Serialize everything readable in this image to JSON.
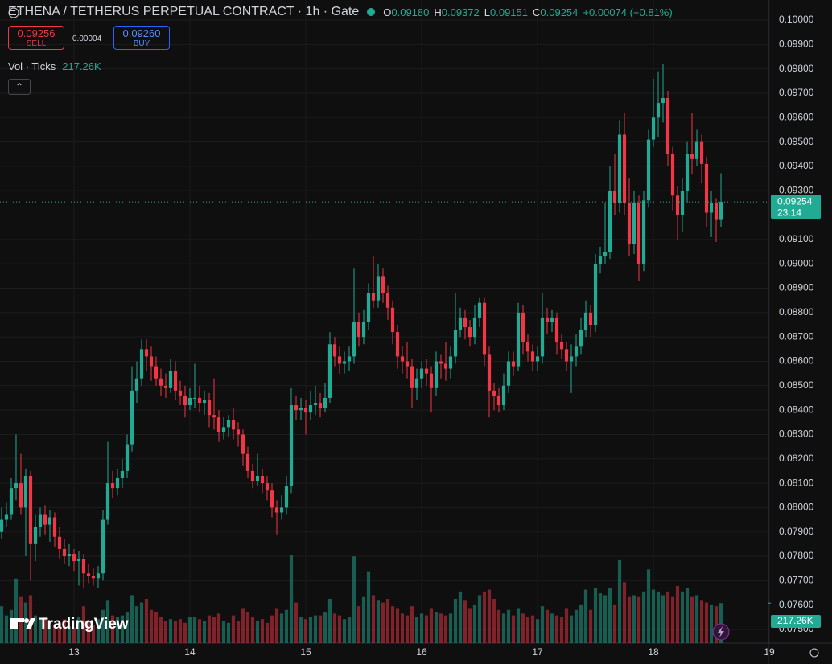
{
  "chart_data": {
    "type": "candlestick",
    "title": "ETHENA / TETHERUS PERPETUAL CONTRACT · 1h · Gate",
    "legend_ohlc": [
      {
        "key": "O",
        "value": "0.09180"
      },
      {
        "key": "H",
        "value": "0.09372"
      },
      {
        "key": "L",
        "value": "0.09151"
      },
      {
        "key": "C",
        "value": "0.09254"
      }
    ],
    "change": "+0.00074 (+0.81%)",
    "sell": {
      "price": "0.09256",
      "label": "SELL"
    },
    "spread": "0.00004",
    "buy": {
      "price": "0.09260",
      "label": "BUY"
    },
    "volume_title": "Vol · Ticks",
    "volume_label": "217.26K",
    "last_price_label": "0.09254",
    "countdown": "23:14",
    "logo": "TradingView",
    "up_color": "#22ab94",
    "down_color": "#f23645",
    "grid": true,
    "candles": [
      [
        0.079,
        0.08,
        0.0787,
        0.0795
      ],
      [
        0.0795,
        0.0802,
        0.0792,
        0.0797
      ],
      [
        0.0797,
        0.0812,
        0.0795,
        0.0808
      ],
      [
        0.0808,
        0.083,
        0.0803,
        0.081
      ],
      [
        0.081,
        0.0822,
        0.0797,
        0.08
      ],
      [
        0.08,
        0.0816,
        0.078,
        0.0813
      ],
      [
        0.0813,
        0.0815,
        0.077,
        0.0785
      ],
      [
        0.0785,
        0.0797,
        0.0778,
        0.0792
      ],
      [
        0.0792,
        0.08,
        0.0788,
        0.0797
      ],
      [
        0.0797,
        0.0801,
        0.0789,
        0.0793
      ],
      [
        0.0793,
        0.0799,
        0.0786,
        0.0796
      ],
      [
        0.0796,
        0.0798,
        0.0784,
        0.0788
      ],
      [
        0.0788,
        0.0792,
        0.0779,
        0.0783
      ],
      [
        0.0783,
        0.0787,
        0.0777,
        0.078
      ],
      [
        0.078,
        0.0785,
        0.0776,
        0.0781
      ],
      [
        0.0781,
        0.0783,
        0.0774,
        0.0778
      ],
      [
        0.0778,
        0.0782,
        0.0768,
        0.0779
      ],
      [
        0.0779,
        0.0781,
        0.0767,
        0.0773
      ],
      [
        0.0773,
        0.0777,
        0.0769,
        0.0772
      ],
      [
        0.0772,
        0.0775,
        0.0768,
        0.0771
      ],
      [
        0.0771,
        0.0776,
        0.0767,
        0.0773
      ],
      [
        0.0773,
        0.0799,
        0.077,
        0.0795
      ],
      [
        0.0795,
        0.0827,
        0.0793,
        0.081
      ],
      [
        0.081,
        0.0815,
        0.0804,
        0.0808
      ],
      [
        0.0808,
        0.0816,
        0.0805,
        0.0812
      ],
      [
        0.0812,
        0.082,
        0.0808,
        0.0815
      ],
      [
        0.0815,
        0.083,
        0.0812,
        0.0826
      ],
      [
        0.0826,
        0.0858,
        0.0823,
        0.0848
      ],
      [
        0.0848,
        0.086,
        0.0843,
        0.0853
      ],
      [
        0.0853,
        0.0869,
        0.085,
        0.0865
      ],
      [
        0.0865,
        0.0869,
        0.0856,
        0.0862
      ],
      [
        0.0862,
        0.0866,
        0.0852,
        0.0858
      ],
      [
        0.0858,
        0.0862,
        0.085,
        0.0853
      ],
      [
        0.0853,
        0.0857,
        0.0846,
        0.085
      ],
      [
        0.085,
        0.0855,
        0.0845,
        0.0849
      ],
      [
        0.0849,
        0.0861,
        0.0847,
        0.0856
      ],
      [
        0.0856,
        0.086,
        0.0844,
        0.0848
      ],
      [
        0.0848,
        0.0852,
        0.0842,
        0.0846
      ],
      [
        0.0846,
        0.085,
        0.0837,
        0.0842
      ],
      [
        0.0842,
        0.0849,
        0.084,
        0.0845
      ],
      [
        0.0845,
        0.0859,
        0.0841,
        0.0845
      ],
      [
        0.0845,
        0.085,
        0.0839,
        0.0843
      ],
      [
        0.0843,
        0.0848,
        0.0838,
        0.0844
      ],
      [
        0.0844,
        0.0847,
        0.0833,
        0.0838
      ],
      [
        0.0838,
        0.0853,
        0.0832,
        0.0837
      ],
      [
        0.0837,
        0.084,
        0.0827,
        0.0831
      ],
      [
        0.0831,
        0.0837,
        0.0828,
        0.0833
      ],
      [
        0.0833,
        0.0838,
        0.0829,
        0.0836
      ],
      [
        0.0836,
        0.0841,
        0.0828,
        0.0832
      ],
      [
        0.0832,
        0.0835,
        0.0825,
        0.083
      ],
      [
        0.083,
        0.0832,
        0.0817,
        0.0822
      ],
      [
        0.0822,
        0.0825,
        0.0812,
        0.0815
      ],
      [
        0.0815,
        0.0818,
        0.0808,
        0.0811
      ],
      [
        0.0811,
        0.0822,
        0.0809,
        0.0813
      ],
      [
        0.0813,
        0.0816,
        0.0806,
        0.081
      ],
      [
        0.081,
        0.0813,
        0.0803,
        0.0807
      ],
      [
        0.0807,
        0.081,
        0.0796,
        0.08
      ],
      [
        0.08,
        0.0803,
        0.0789,
        0.0798
      ],
      [
        0.0798,
        0.0805,
        0.0795,
        0.08
      ],
      [
        0.08,
        0.0813,
        0.0797,
        0.0809
      ],
      [
        0.0809,
        0.0849,
        0.0806,
        0.0842
      ],
      [
        0.0842,
        0.0846,
        0.0836,
        0.084
      ],
      [
        0.084,
        0.0845,
        0.0836,
        0.0841
      ],
      [
        0.0841,
        0.0844,
        0.083,
        0.0839
      ],
      [
        0.0839,
        0.0848,
        0.0836,
        0.0842
      ],
      [
        0.0842,
        0.085,
        0.0838,
        0.0843
      ],
      [
        0.0843,
        0.0847,
        0.0837,
        0.0841
      ],
      [
        0.0841,
        0.0851,
        0.0839,
        0.0845
      ],
      [
        0.0845,
        0.0872,
        0.0843,
        0.0867
      ],
      [
        0.0867,
        0.087,
        0.0858,
        0.0862
      ],
      [
        0.0862,
        0.0866,
        0.0855,
        0.0859
      ],
      [
        0.0859,
        0.0864,
        0.0855,
        0.086
      ],
      [
        0.086,
        0.0866,
        0.0856,
        0.0862
      ],
      [
        0.0862,
        0.0898,
        0.0859,
        0.0876
      ],
      [
        0.0876,
        0.088,
        0.0866,
        0.087
      ],
      [
        0.087,
        0.0881,
        0.0867,
        0.0876
      ],
      [
        0.0876,
        0.0892,
        0.0873,
        0.0888
      ],
      [
        0.0888,
        0.0903,
        0.0882,
        0.0885
      ],
      [
        0.0885,
        0.09,
        0.0882,
        0.0895
      ],
      [
        0.0895,
        0.0898,
        0.0884,
        0.0888
      ],
      [
        0.0888,
        0.0891,
        0.0877,
        0.0882
      ],
      [
        0.0882,
        0.0885,
        0.0867,
        0.0872
      ],
      [
        0.0872,
        0.0875,
        0.0857,
        0.0862
      ],
      [
        0.0862,
        0.0866,
        0.0855,
        0.086
      ],
      [
        0.086,
        0.0868,
        0.0853,
        0.0858
      ],
      [
        0.0858,
        0.0861,
        0.0841,
        0.0849
      ],
      [
        0.0849,
        0.0857,
        0.0844,
        0.0853
      ],
      [
        0.0853,
        0.086,
        0.0849,
        0.0857
      ],
      [
        0.0857,
        0.0861,
        0.085,
        0.0855
      ],
      [
        0.0855,
        0.0858,
        0.0839,
        0.0849
      ],
      [
        0.0849,
        0.0864,
        0.0846,
        0.086
      ],
      [
        0.086,
        0.0863,
        0.0853,
        0.0859
      ],
      [
        0.0859,
        0.0868,
        0.0852,
        0.0857
      ],
      [
        0.0857,
        0.0866,
        0.0853,
        0.0862
      ],
      [
        0.0862,
        0.0888,
        0.0859,
        0.0873
      ],
      [
        0.0873,
        0.0882,
        0.087,
        0.0878
      ],
      [
        0.0878,
        0.0881,
        0.0869,
        0.0874
      ],
      [
        0.0874,
        0.0877,
        0.0866,
        0.087
      ],
      [
        0.087,
        0.0883,
        0.0867,
        0.0878
      ],
      [
        0.0878,
        0.0886,
        0.0874,
        0.0884
      ],
      [
        0.0884,
        0.0886,
        0.0858,
        0.0863
      ],
      [
        0.0863,
        0.0866,
        0.0837,
        0.0848
      ],
      [
        0.0848,
        0.0851,
        0.084,
        0.0846
      ],
      [
        0.0846,
        0.0849,
        0.0839,
        0.0842
      ],
      [
        0.0842,
        0.0855,
        0.084,
        0.085
      ],
      [
        0.085,
        0.0864,
        0.0847,
        0.086
      ],
      [
        0.086,
        0.0864,
        0.0854,
        0.0858
      ],
      [
        0.0858,
        0.0884,
        0.0856,
        0.088
      ],
      [
        0.088,
        0.0883,
        0.0863,
        0.0868
      ],
      [
        0.0868,
        0.0871,
        0.086,
        0.0864
      ],
      [
        0.0864,
        0.0867,
        0.0856,
        0.086
      ],
      [
        0.086,
        0.0866,
        0.0856,
        0.0862
      ],
      [
        0.0862,
        0.0888,
        0.0859,
        0.0878
      ],
      [
        0.0878,
        0.0882,
        0.0871,
        0.0876
      ],
      [
        0.0876,
        0.0881,
        0.0872,
        0.0878
      ],
      [
        0.0878,
        0.088,
        0.0863,
        0.0868
      ],
      [
        0.0868,
        0.0871,
        0.0861,
        0.0865
      ],
      [
        0.0865,
        0.0868,
        0.0856,
        0.086
      ],
      [
        0.086,
        0.0867,
        0.0847,
        0.0862
      ],
      [
        0.0862,
        0.0871,
        0.0858,
        0.0866
      ],
      [
        0.0866,
        0.0878,
        0.0863,
        0.0873
      ],
      [
        0.0873,
        0.0885,
        0.087,
        0.088
      ],
      [
        0.088,
        0.0883,
        0.087,
        0.0875
      ],
      [
        0.0875,
        0.0904,
        0.0872,
        0.09
      ],
      [
        0.09,
        0.0907,
        0.0896,
        0.0903
      ],
      [
        0.0903,
        0.0925,
        0.09,
        0.0905
      ],
      [
        0.0905,
        0.094,
        0.0902,
        0.093
      ],
      [
        0.093,
        0.0945,
        0.092,
        0.0925
      ],
      [
        0.0925,
        0.0959,
        0.0921,
        0.0953
      ],
      [
        0.0953,
        0.0962,
        0.092,
        0.0925
      ],
      [
        0.0925,
        0.0935,
        0.0903,
        0.0908
      ],
      [
        0.0908,
        0.093,
        0.0904,
        0.0925
      ],
      [
        0.0925,
        0.0928,
        0.0893,
        0.09
      ],
      [
        0.09,
        0.093,
        0.0897,
        0.0926
      ],
      [
        0.0926,
        0.0955,
        0.0923,
        0.0951
      ],
      [
        0.0951,
        0.0976,
        0.0948,
        0.096
      ],
      [
        0.096,
        0.0979,
        0.0952,
        0.0966
      ],
      [
        0.0966,
        0.0982,
        0.0958,
        0.0968
      ],
      [
        0.0968,
        0.0971,
        0.094,
        0.0945
      ],
      [
        0.0945,
        0.0948,
        0.0922,
        0.0928
      ],
      [
        0.0928,
        0.0932,
        0.091,
        0.092
      ],
      [
        0.092,
        0.0935,
        0.0913,
        0.093
      ],
      [
        0.093,
        0.095,
        0.0925,
        0.0945
      ],
      [
        0.0945,
        0.0962,
        0.0937,
        0.0943
      ],
      [
        0.0943,
        0.0955,
        0.094,
        0.095
      ],
      [
        0.095,
        0.0953,
        0.0933,
        0.0941
      ],
      [
        0.0941,
        0.0944,
        0.0915,
        0.0921
      ],
      [
        0.0921,
        0.093,
        0.0911,
        0.0925
      ],
      [
        0.0925,
        0.0927,
        0.0909,
        0.0918
      ],
      [
        0.0918,
        0.09372,
        0.09151,
        0.09254
      ]
    ],
    "volumes": [
      200000,
      150000,
      180000,
      350000,
      250000,
      220000,
      260000,
      150000,
      130000,
      140000,
      120000,
      100000,
      110000,
      130000,
      90000,
      85000,
      140000,
      200000,
      120000,
      100000,
      130000,
      180000,
      230000,
      150000,
      140000,
      150000,
      170000,
      260000,
      200000,
      220000,
      240000,
      180000,
      170000,
      140000,
      120000,
      130000,
      120000,
      130000,
      110000,
      140000,
      140000,
      130000,
      120000,
      150000,
      140000,
      160000,
      120000,
      110000,
      150000,
      120000,
      190000,
      170000,
      140000,
      120000,
      130000,
      110000,
      150000,
      190000,
      160000,
      180000,
      480000,
      220000,
      140000,
      130000,
      140000,
      150000,
      150000,
      170000,
      240000,
      160000,
      150000,
      130000,
      140000,
      470000,
      200000,
      250000,
      390000,
      260000,
      230000,
      220000,
      240000,
      200000,
      190000,
      160000,
      150000,
      200000,
      140000,
      160000,
      150000,
      190000,
      170000,
      160000,
      150000,
      160000,
      240000,
      280000,
      230000,
      190000,
      210000,
      260000,
      280000,
      290000,
      240000,
      180000,
      160000,
      180000,
      150000,
      190000,
      160000,
      140000,
      150000,
      130000,
      200000,
      180000,
      160000,
      150000,
      140000,
      190000,
      150000,
      180000,
      210000,
      290000,
      180000,
      300000,
      270000,
      260000,
      300000,
      210000,
      450000,
      330000,
      250000,
      260000,
      250000,
      280000,
      400000,
      290000,
      280000,
      260000,
      280000,
      250000,
      310000,
      280000,
      300000,
      250000,
      260000,
      230000,
      220000,
      210000,
      200000,
      217260
    ],
    "volume_ylim": [
      0,
      480000
    ],
    "xlim": [
      -0.33,
      158.83
    ],
    "xticks": [
      {
        "value": 15,
        "label": "13"
      },
      {
        "value": 39,
        "label": "14"
      },
      {
        "value": 63,
        "label": "15"
      },
      {
        "value": 87,
        "label": "16"
      },
      {
        "value": 111,
        "label": "17"
      },
      {
        "value": 135,
        "label": "18"
      },
      {
        "value": 159,
        "label": "19"
      }
    ],
    "ylim": [
      0.075,
      0.1
    ],
    "yticks": [
      {
        "value": 0.075,
        "label": "0.07500"
      },
      {
        "value": 0.076,
        "label": "0.07600"
      },
      {
        "value": 0.077,
        "label": "0.07700"
      },
      {
        "value": 0.078,
        "label": "0.07800"
      },
      {
        "value": 0.079,
        "label": "0.07900"
      },
      {
        "value": 0.08,
        "label": "0.08000"
      },
      {
        "value": 0.081,
        "label": "0.08100"
      },
      {
        "value": 0.082,
        "label": "0.08200"
      },
      {
        "value": 0.083,
        "label": "0.08300"
      },
      {
        "value": 0.084,
        "label": "0.08400"
      },
      {
        "value": 0.085,
        "label": "0.08500"
      },
      {
        "value": 0.086,
        "label": "0.08600"
      },
      {
        "value": 0.087,
        "label": "0.08700"
      },
      {
        "value": 0.088,
        "label": "0.08800"
      },
      {
        "value": 0.089,
        "label": "0.08900"
      },
      {
        "value": 0.09,
        "label": "0.09000"
      },
      {
        "value": 0.091,
        "label": "0.09100"
      },
      {
        "value": 0.092,
        "label": "0.09200"
      },
      {
        "value": 0.093,
        "label": "0.09300"
      },
      {
        "value": 0.094,
        "label": "0.09400"
      },
      {
        "value": 0.095,
        "label": "0.09500"
      },
      {
        "value": 0.096,
        "label": "0.09600"
      },
      {
        "value": 0.097,
        "label": "0.09700"
      },
      {
        "value": 0.098,
        "label": "0.09800"
      },
      {
        "value": 0.099,
        "label": "0.09900"
      },
      {
        "value": 0.1,
        "label": "0.10000"
      }
    ]
  }
}
